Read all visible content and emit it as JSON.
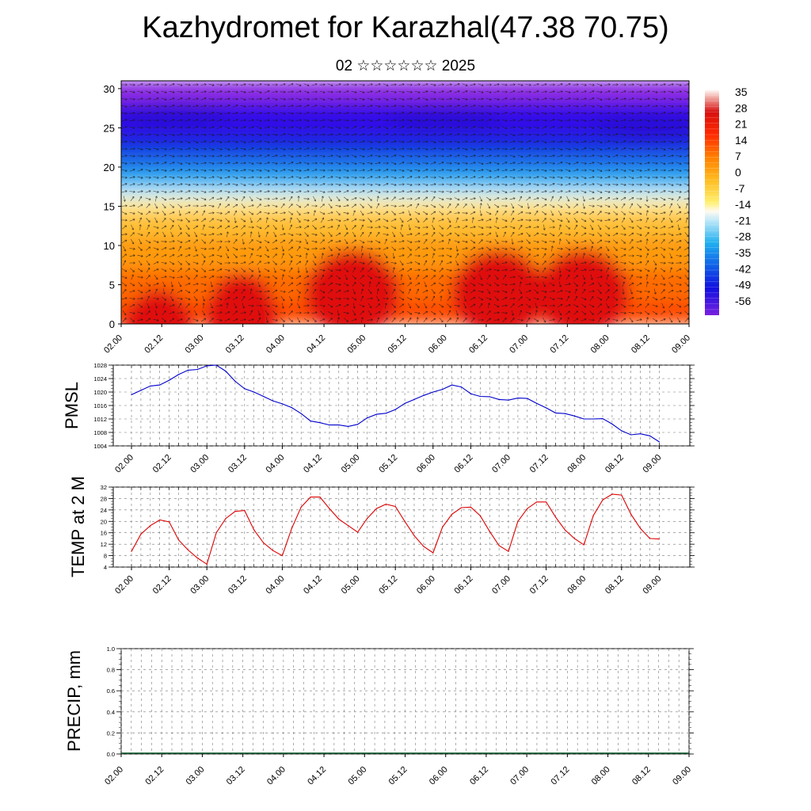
{
  "header": {
    "title": "Kazhydromet for Karazhal(47.38 70.75)",
    "subtitle": "02 ☆☆☆☆☆☆ 2025"
  },
  "chart_data": [
    {
      "type": "heatmap",
      "title": "",
      "xlabel": "",
      "ylabel": "",
      "x_ticks": [
        "02.00",
        "02.12",
        "03.00",
        "03.12",
        "04.00",
        "04.12",
        "05.00",
        "05.12",
        "06.00",
        "06.12",
        "07.00",
        "07.12",
        "08.00",
        "08.12",
        "09.00"
      ],
      "y_ticks": [
        0,
        5,
        10,
        15,
        20,
        25,
        30
      ],
      "ylim": [
        0,
        31
      ],
      "colorbar_labels": [
        "35",
        "28",
        "21",
        "14",
        "7",
        "0",
        "-7",
        "-14",
        "-21",
        "-28",
        "-35",
        "-42",
        "-49",
        "-56"
      ],
      "overlay": "wind vectors"
    },
    {
      "type": "line",
      "ylabel": "PMSL",
      "ylim": [
        1004,
        1028
      ],
      "y_ticks": [
        1004,
        1008,
        1012,
        1016,
        1020,
        1024,
        1028
      ],
      "x_ticks": [
        "02.00",
        "02.12",
        "03.00",
        "03.12",
        "04.00",
        "04.12",
        "05.00",
        "05.12",
        "06.00",
        "06.12",
        "07.00",
        "07.12",
        "08.00",
        "08.12",
        "09.00"
      ],
      "series": [
        {
          "color": "#0000cc",
          "x_hours": [
            0,
            3,
            6,
            9,
            12,
            15,
            18,
            21,
            24,
            27,
            30,
            33,
            36,
            39,
            42,
            45,
            48,
            51,
            54,
            57,
            60,
            63,
            66,
            69,
            72,
            75,
            78,
            81,
            84,
            87,
            90,
            93,
            96,
            99,
            102,
            105,
            108,
            111,
            114,
            117,
            120,
            123,
            126,
            129,
            132,
            135,
            138,
            141,
            144,
            147,
            150,
            153,
            156,
            159,
            162,
            165,
            168
          ],
          "values": [
            1019.2,
            1020.5,
            1021.8,
            1022.1,
            1023.5,
            1025.2,
            1026.5,
            1026.7,
            1027.8,
            1028.0,
            1026.2,
            1023.2,
            1021.0,
            1020.0,
            1018.7,
            1017.4,
            1016.5,
            1015.4,
            1013.6,
            1011.4,
            1010.9,
            1010.2,
            1010.2,
            1009.8,
            1010.4,
            1012.3,
            1013.4,
            1013.7,
            1014.8,
            1016.6,
            1017.8,
            1019.0,
            1020.0,
            1020.8,
            1022.1,
            1021.5,
            1019.5,
            1018.7,
            1018.6,
            1017.8,
            1017.6,
            1018.2,
            1018.1,
            1016.6,
            1015.3,
            1013.8,
            1013.6,
            1012.9,
            1012.0,
            1012.0,
            1012.1,
            1010.5,
            1008.5,
            1007.3,
            1007.6,
            1007.0,
            1005.2
          ]
        }
      ]
    },
    {
      "type": "line",
      "ylabel": "TEMP at 2 M",
      "ylim": [
        4,
        32
      ],
      "y_ticks": [
        4,
        8,
        12,
        16,
        20,
        24,
        28,
        32
      ],
      "x_ticks": [
        "02.00",
        "02.12",
        "03.00",
        "03.12",
        "04.00",
        "04.12",
        "05.00",
        "05.12",
        "06.00",
        "06.12",
        "07.00",
        "07.12",
        "08.00",
        "08.12",
        "09.00"
      ],
      "series": [
        {
          "color": "#dd0000",
          "x_hours": [
            0,
            3,
            6,
            9,
            12,
            15,
            18,
            21,
            24,
            27,
            30,
            33,
            36,
            39,
            42,
            45,
            48,
            51,
            54,
            57,
            60,
            63,
            66,
            69,
            72,
            75,
            78,
            81,
            84,
            87,
            90,
            93,
            96,
            99,
            102,
            105,
            108,
            111,
            114,
            117,
            120,
            123,
            126,
            129,
            132,
            135,
            138,
            141,
            144,
            147,
            150,
            153,
            156,
            159,
            162,
            165,
            168
          ],
          "values": [
            9.5,
            15.5,
            18.5,
            20.5,
            19.8,
            13.5,
            10.0,
            7.2,
            5.0,
            16.0,
            21.0,
            23.5,
            23.8,
            17.0,
            12.5,
            9.8,
            8.0,
            17.5,
            25.0,
            28.5,
            28.5,
            24.5,
            20.8,
            18.5,
            16.2,
            21.0,
            24.5,
            26.0,
            25.2,
            20.0,
            15.0,
            11.2,
            9.0,
            18.0,
            22.5,
            24.8,
            25.0,
            22.0,
            16.5,
            11.5,
            9.5,
            20.0,
            24.5,
            26.8,
            26.8,
            21.5,
            17.0,
            14.0,
            11.8,
            22.0,
            27.5,
            29.5,
            29.2,
            22.5,
            17.5,
            14.0,
            13.8
          ]
        }
      ]
    },
    {
      "type": "bar",
      "ylabel": "PRECIP, mm",
      "ylim": [
        0,
        1.0
      ],
      "y_ticks": [
        "0.0",
        "0.2",
        "0.4",
        "0.6",
        "0.8",
        "1.0"
      ],
      "x_ticks": [
        "02.00",
        "02.12",
        "03.00",
        "03.12",
        "04.00",
        "04.12",
        "05.00",
        "05.12",
        "06.00",
        "06.12",
        "07.00",
        "07.12",
        "08.00",
        "08.12",
        "09.00"
      ],
      "values": []
    }
  ]
}
